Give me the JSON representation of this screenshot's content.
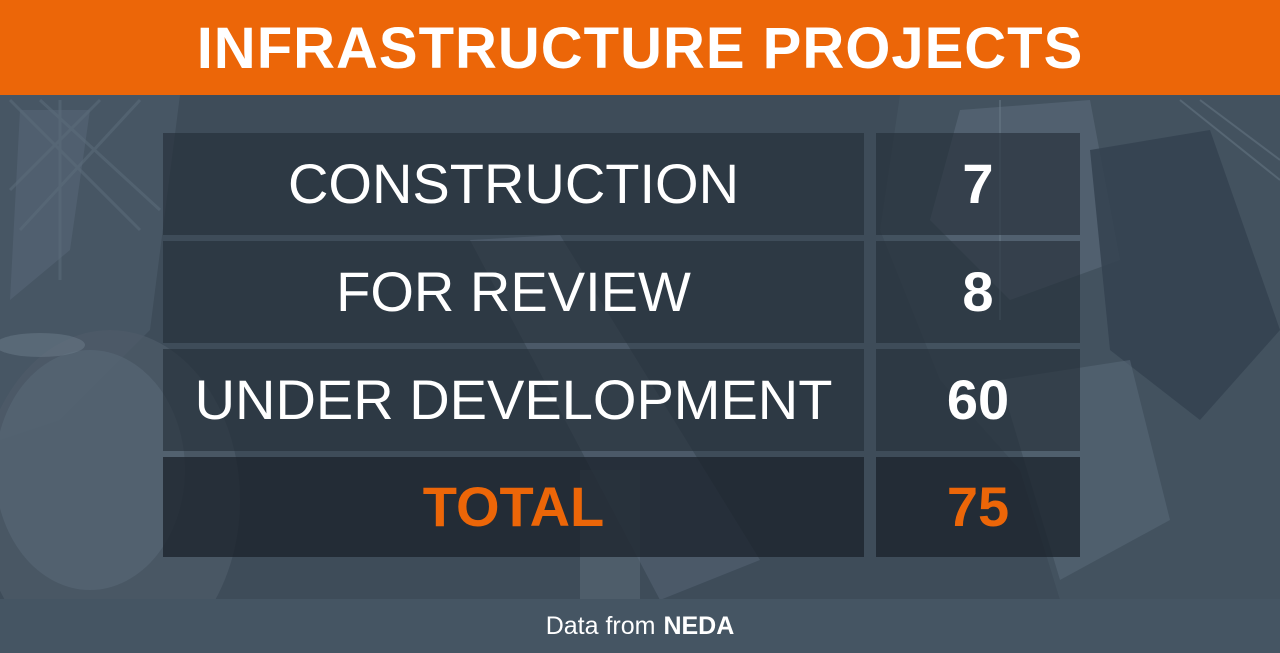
{
  "chart_data": {
    "type": "table",
    "title": "INFRASTRUCTURE PROJECTS",
    "rows": [
      {
        "label": "CONSTRUCTION",
        "value": "7"
      },
      {
        "label": "FOR REVIEW",
        "value": "8"
      },
      {
        "label": "UNDER DEVELOPMENT",
        "value": "60"
      }
    ],
    "total": {
      "label": "TOTAL",
      "value": "75"
    },
    "source_prefix": "Data from",
    "source_name": "NEDA"
  },
  "colors": {
    "accent": "#ec6608",
    "background": "#3f4d5a",
    "footer": "#455563",
    "text": "#ffffff"
  }
}
